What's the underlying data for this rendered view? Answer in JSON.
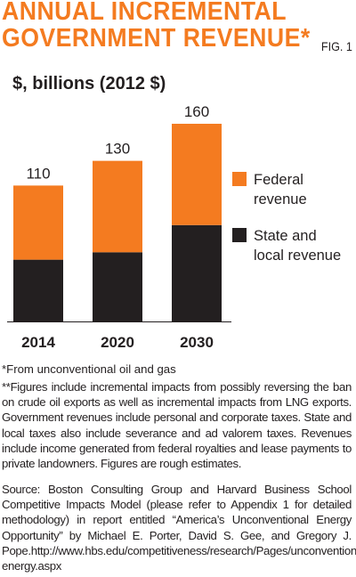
{
  "header": {
    "title_line1": "ANNUAL INCREMENTAL",
    "title_line2": "GOVERNMENT REVENUE*",
    "fig_label": "FIG. 1"
  },
  "chart_data": {
    "type": "bar",
    "stacked": true,
    "unit_label": "$, billions (2012 $)",
    "categories": [
      "2014",
      "2020",
      "2030"
    ],
    "totals": [
      110,
      130,
      160
    ],
    "series": [
      {
        "name": "State and local revenue",
        "values": [
          50,
          56,
          78
        ],
        "color": "#231f20"
      },
      {
        "name": "Federal revenue",
        "values": [
          60,
          74,
          82
        ],
        "color": "#f47b20"
      }
    ],
    "legend": [
      {
        "lines": [
          "Federal",
          "revenue"
        ],
        "color": "#f47b20"
      },
      {
        "lines": [
          "State and",
          "local revenue"
        ],
        "color": "#231f20"
      }
    ],
    "legend_position": "right",
    "ylim": [
      0,
      160
    ],
    "grid": false
  },
  "footnotes": {
    "asterisk": "*From unconventional oil and gas",
    "double_asterisk": "**Figures include incremental impacts from possibly reversing the ban on crude oil exports as well as incremental impacts from LNG exports. Government revenues include personal and corporate taxes. State and local taxes also include severance and ad valorem taxes. Revenues include income generated from federal royalties and lease payments to private landowners. Figures are rough estimates.",
    "source": "Source: Boston Consulting Group and Harvard Business School Competitive Impacts Model (please refer to Appendix 1 for detailed methodology) in report entitled “America’s Unconventional Energy Opportunity” by Michael E. Porter, David S. Gee, and Gregory J. Pope.http://www.hbs.edu/competitiveness/research/Pages/unconventional-energy.aspx"
  }
}
